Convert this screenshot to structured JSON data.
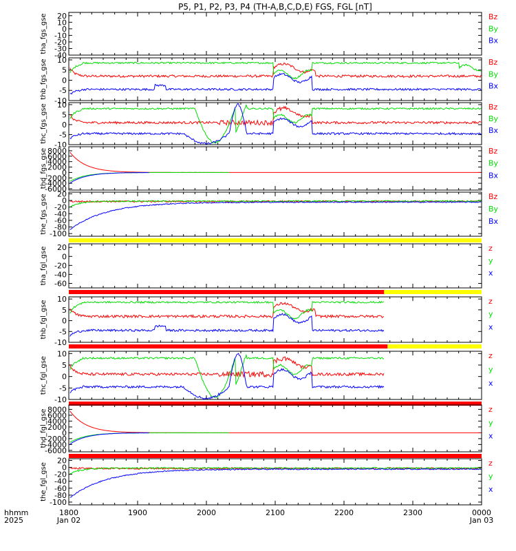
{
  "title": "P5, P1, P2, P3, P4 (TH-A,B,C,D,E) FGS, FGL [nT]",
  "colors": {
    "z": "#ff0000",
    "y": "#00dd00",
    "x": "#0000ff",
    "bar_red": "#ff0000",
    "bar_yellow": "#ffff00",
    "bar_black": "#000000"
  },
  "time_axis": {
    "label_line1": "hhmm",
    "label_line2": "2025",
    "ticks": [
      {
        "t": 0,
        "label": "1800",
        "date": "Jan 02"
      },
      {
        "t": 60,
        "label": "1900",
        "date": ""
      },
      {
        "t": 120,
        "label": "2000",
        "date": ""
      },
      {
        "t": 180,
        "label": "2100",
        "date": ""
      },
      {
        "t": 240,
        "label": "2200",
        "date": ""
      },
      {
        "t": 300,
        "label": "2300",
        "date": ""
      },
      {
        "t": 360,
        "label": "0000",
        "date": "Jan 03"
      }
    ]
  },
  "chart_data": [
    {
      "type": "line",
      "ylabel": "tha_fgs_gse",
      "ylim": [
        -40,
        25
      ],
      "yticks": [
        "20",
        "10",
        "0",
        "-10",
        "-20",
        "-30",
        "-40"
      ],
      "ytick_values": [
        20,
        10,
        0,
        -10,
        -20,
        -30,
        -40
      ],
      "legend": [
        "Bz",
        "By",
        "Bx"
      ],
      "profile": "empty",
      "bars_top": [],
      "bars_bottom": []
    },
    {
      "type": "line",
      "ylabel": "thb_fgs_gse",
      "ylim": [
        -10,
        11
      ],
      "yticks": [
        "10",
        "5",
        "0",
        "-5",
        "-10"
      ],
      "ytick_values": [
        10,
        5,
        0,
        -5,
        -10
      ],
      "legend": [
        "Bz",
        "By",
        "Bx"
      ],
      "profile": "b",
      "bars_top": [],
      "bars_bottom": []
    },
    {
      "type": "line",
      "ylabel": "thc_fgs_gse",
      "ylim": [
        -10,
        11
      ],
      "yticks": [
        "10",
        "5",
        "0",
        "-5",
        "-10"
      ],
      "ytick_values": [
        10,
        5,
        0,
        -5,
        -10
      ],
      "legend": [
        "Bz",
        "By",
        "Bx"
      ],
      "profile": "c",
      "bars_top": [],
      "bars_bottom": []
    },
    {
      "type": "line",
      "ylabel": "thd_fgs_gse",
      "ylim": [
        -6500,
        9500
      ],
      "yticks": [
        "8000",
        "6000",
        "4000",
        "2000",
        "0",
        "-2000",
        "-4000",
        "-6000"
      ],
      "ytick_values": [
        8000,
        6000,
        4000,
        2000,
        0,
        -2000,
        -4000,
        -6000
      ],
      "legend": [
        "Bz",
        "By",
        "Bx"
      ],
      "profile": "d",
      "bars_top": [],
      "bars_bottom": []
    },
    {
      "type": "line",
      "ylabel": "the_fgs_gse",
      "ylim": [
        -108,
        25
      ],
      "yticks": [
        "20",
        "0",
        "-20",
        "-40",
        "-60",
        "-80",
        "-100"
      ],
      "ytick_values": [
        20,
        0,
        -20,
        -40,
        -60,
        -80,
        -100
      ],
      "legend": [
        "Bz",
        "By",
        "Bx"
      ],
      "profile": "e",
      "bars_top": [],
      "bars_bottom": [
        {
          "t0": 0,
          "t1": 360,
          "color": "yellow"
        }
      ]
    },
    {
      "type": "line",
      "ylabel": "tha_fgl_gse",
      "ylim": [
        -70,
        28
      ],
      "yticks": [
        "20",
        "0",
        "-20",
        "-40",
        "-60"
      ],
      "ytick_values": [
        20,
        0,
        -20,
        -40,
        -60
      ],
      "legend": [
        "z",
        "y",
        "x"
      ],
      "profile": "empty",
      "bars_top": [],
      "bars_bottom": [
        {
          "t0": 0,
          "t1": 275,
          "color": "red"
        },
        {
          "t0": 275,
          "t1": 360,
          "color": "yellow"
        }
      ]
    },
    {
      "type": "line",
      "ylabel": "thb_fgl_gse",
      "ylim": [
        -10,
        11
      ],
      "yticks": [
        "10",
        "5",
        "0",
        "-5",
        "-10"
      ],
      "ytick_values": [
        10,
        5,
        0,
        -5,
        -10
      ],
      "legend": [
        "z",
        "y",
        "x"
      ],
      "profile": "b",
      "tmax": 275,
      "bars_top": [],
      "bars_bottom": [
        {
          "t0": 0,
          "t1": 278,
          "color": "red"
        },
        {
          "t0": 278,
          "t1": 360,
          "color": "yellow"
        }
      ]
    },
    {
      "type": "line",
      "ylabel": "thc_fgl_gse",
      "ylim": [
        -10,
        11
      ],
      "yticks": [
        "10",
        "5",
        "0",
        "-5",
        "-10"
      ],
      "ytick_values": [
        10,
        5,
        0,
        -5,
        -10
      ],
      "legend": [
        "z",
        "y",
        "x"
      ],
      "profile": "c",
      "tmax": 275,
      "bars_top": [],
      "bars_bottom": [
        {
          "t0": 0,
          "t1": 360,
          "color": "red"
        }
      ]
    },
    {
      "type": "line",
      "ylabel": "thd_fgl_gse",
      "ylim": [
        -6500,
        9500
      ],
      "yticks": [
        "8000",
        "6000",
        "4000",
        "2000",
        "0",
        "-2000",
        "-4000",
        "-6000"
      ],
      "ytick_values": [
        8000,
        6000,
        4000,
        2000,
        0,
        -2000,
        -4000,
        -6000
      ],
      "legend": [
        "z",
        "y",
        "x"
      ],
      "profile": "d",
      "bars_top": [],
      "bars_bottom": [
        {
          "t0": 0,
          "t1": 360,
          "color": "red"
        }
      ]
    },
    {
      "type": "line",
      "ylabel": "the_fgl_gse",
      "ylim": [
        -108,
        25
      ],
      "yticks": [
        "20",
        "0",
        "-20",
        "-40",
        "-60",
        "-80",
        "-100"
      ],
      "ytick_values": [
        20,
        0,
        -20,
        -40,
        -60,
        -80,
        -100
      ],
      "legend": [
        "z",
        "y",
        "x"
      ],
      "profile": "e",
      "bars_top": [],
      "bars_bottom": []
    }
  ]
}
